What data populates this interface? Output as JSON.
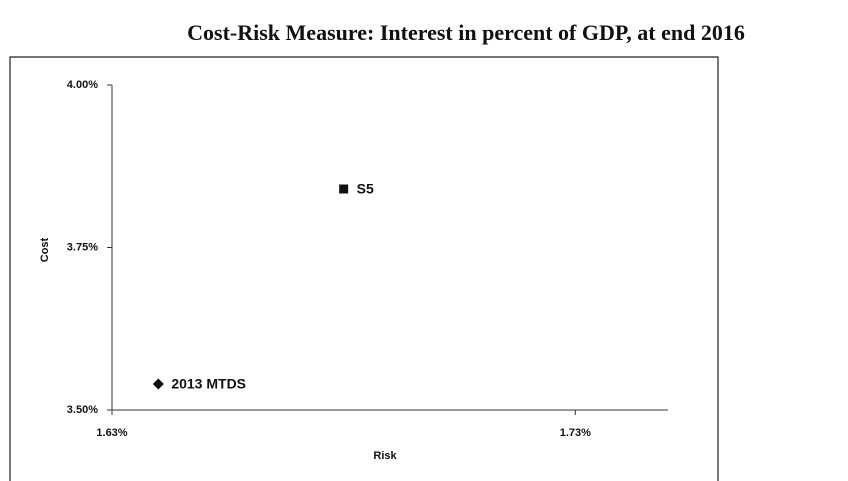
{
  "chart_data": {
    "type": "scatter",
    "title": "Cost-Risk Measure: Interest in percent of GDP, at end 2016",
    "x_label": "Risk",
    "y_label": "Cost",
    "xlim": [
      1.63,
      1.75
    ],
    "xticks": [
      {
        "value": 1.63,
        "label": "1.63%"
      },
      {
        "value": 1.73,
        "label": "1.73%"
      }
    ],
    "ylim": [
      3.5,
      4.0
    ],
    "yticks": [
      {
        "value": 3.5,
        "label": "3.50%"
      },
      {
        "value": 3.75,
        "label": "3.75%"
      },
      {
        "value": 4.0,
        "label": "4.00%"
      }
    ],
    "series": [
      {
        "name": "S5",
        "marker": "square",
        "color": "#111111",
        "x": [
          1.68
        ],
        "y": [
          3.84
        ]
      },
      {
        "name": "2013 MTDS",
        "marker": "diamond",
        "color": "#111111",
        "x": [
          1.64
        ],
        "y": [
          3.54
        ]
      }
    ]
  }
}
